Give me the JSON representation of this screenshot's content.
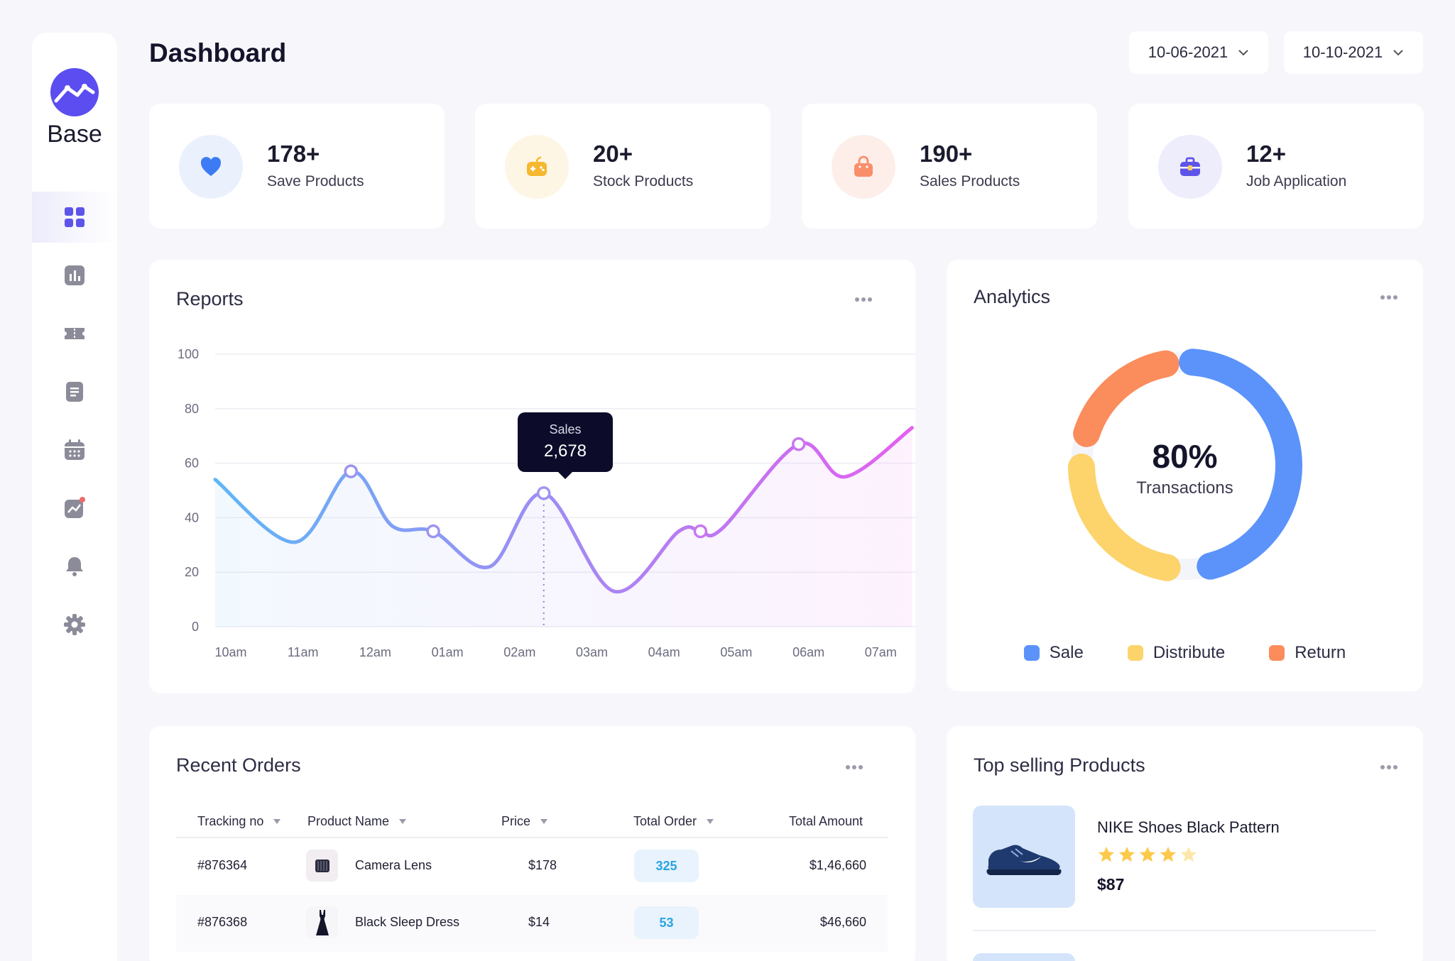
{
  "app": {
    "brand": "Base"
  },
  "header": {
    "title": "Dashboard",
    "date_from": "10-06-2021",
    "date_to": "10-10-2021"
  },
  "sidebar": {
    "items": [
      {
        "icon": "dashboard-grid-icon",
        "active": true
      },
      {
        "icon": "bar-chart-icon",
        "active": false
      },
      {
        "icon": "ticket-icon",
        "active": false
      },
      {
        "icon": "document-icon",
        "active": false
      },
      {
        "icon": "calendar-icon",
        "active": false
      },
      {
        "icon": "trend-chart-icon",
        "active": false
      },
      {
        "icon": "bell-icon",
        "active": false
      },
      {
        "icon": "gear-icon",
        "active": false
      }
    ]
  },
  "stats": [
    {
      "value": "178+",
      "label": "Save Products",
      "icon": "heart-icon",
      "color": "#3d7bf5",
      "bg": "#eaf1fd"
    },
    {
      "value": "20+",
      "label": "Stock Products",
      "icon": "game-icon",
      "color": "#f5b82e",
      "bg": "#fef6e4"
    },
    {
      "value": "190+",
      "label": "Sales Products",
      "icon": "shopping-bag-icon",
      "color": "#f98f6a",
      "bg": "#fdeeea"
    },
    {
      "value": "12+",
      "label": "Job Application",
      "icon": "briefcase-icon",
      "color": "#5d55e8",
      "bg": "#eeedfb"
    }
  ],
  "reports": {
    "title": "Reports",
    "tooltip": {
      "label": "Sales",
      "value": "2,678"
    }
  },
  "chart_data": {
    "type": "line",
    "categories": [
      "10am",
      "11am",
      "12am",
      "01am",
      "02am",
      "03am",
      "04am",
      "05am",
      "06am",
      "07am"
    ],
    "yticks": [
      "0",
      "20",
      "40",
      "60",
      "80",
      "100"
    ],
    "ylim": [
      0,
      100
    ],
    "series": [
      {
        "points": [
          [
            0,
            54
          ],
          [
            1.1,
            31
          ],
          [
            1.88,
            57
          ],
          [
            2.45,
            37
          ],
          [
            3.02,
            35
          ],
          [
            3.8,
            22
          ],
          [
            4.55,
            49
          ],
          [
            5.52,
            13
          ],
          [
            6.42,
            35
          ],
          [
            6.72,
            35
          ],
          [
            7.02,
            36
          ],
          [
            8.08,
            67
          ],
          [
            8.72,
            55
          ],
          [
            9.65,
            73
          ]
        ],
        "markers": [
          [
            1.88,
            57
          ],
          [
            3.02,
            35
          ],
          [
            4.55,
            49
          ],
          [
            6.72,
            35
          ],
          [
            8.08,
            67
          ]
        ],
        "highlight": [
          4.55,
          49
        ],
        "color_start": "#5fb6f7",
        "color_end": "#e45ff0"
      }
    ]
  },
  "analytics": {
    "title": "Analytics",
    "center_value": "80%",
    "center_label": "Transactions",
    "segments": [
      {
        "name": "Sale",
        "value": 45,
        "color": "#5b93fa"
      },
      {
        "name": "Distribute",
        "value": 22,
        "color": "#fcd46b"
      },
      {
        "name": "Return",
        "value": 17,
        "color": "#fb8c5c"
      }
    ]
  },
  "orders": {
    "title": "Recent Orders",
    "columns": [
      "Tracking no",
      "Product Name",
      "Price",
      "Total Order",
      "Total Amount"
    ],
    "rows": [
      {
        "tracking": "#876364",
        "product": "Camera Lens",
        "price": "$178",
        "total_order": "325",
        "amount": "$1,46,660",
        "thumb": "camera-lens-thumbnail"
      },
      {
        "tracking": "#876368",
        "product": "Black Sleep Dress",
        "price": "$14",
        "total_order": "53",
        "amount": "$46,660",
        "thumb": "dress-thumbnail"
      }
    ]
  },
  "top_selling": {
    "title": "Top selling Products",
    "products": [
      {
        "name": "NIKE Shoes Black Pattern",
        "price": "$87",
        "rating": 4.5,
        "max_rating": 5,
        "image": "shoe-image"
      }
    ]
  }
}
